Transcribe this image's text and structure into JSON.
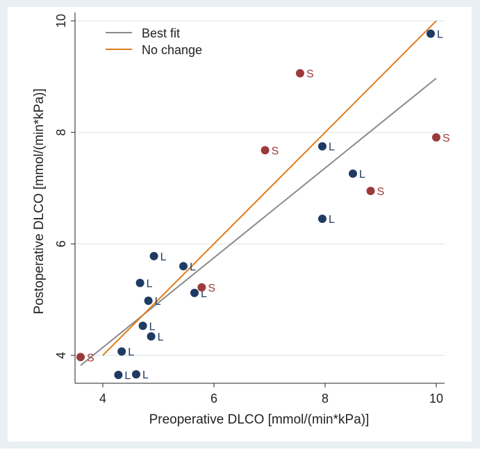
{
  "chart_data": {
    "type": "scatter",
    "title": "",
    "xlabel": "Preoperative DLCO [mmol/(min*kPa)]",
    "ylabel": "Postoperative DLCO [mmol/(min*kPa)]",
    "xlim": [
      3.5,
      10.15
    ],
    "ylim": [
      3.5,
      10.15
    ],
    "xticks": [
      4,
      6,
      8,
      10
    ],
    "yticks": [
      4,
      6,
      8,
      10
    ],
    "grid": true,
    "legend_position": "top-left",
    "legend": [
      {
        "label": "Best fit",
        "color": "#8a8a8a"
      },
      {
        "label": "No change",
        "color": "#e07b1a"
      }
    ],
    "lines": [
      {
        "name": "Best fit",
        "x": [
          3.6,
          10.0
        ],
        "y": [
          3.82,
          8.97
        ],
        "color": "#8a8a8a"
      },
      {
        "name": "No change",
        "x": [
          4.0,
          10.0
        ],
        "y": [
          4.0,
          10.0
        ],
        "color": "#e07b1a"
      }
    ],
    "series": [
      {
        "label": "L",
        "color": "#1f3b63",
        "points": [
          {
            "x": 9.9,
            "y": 9.77
          },
          {
            "x": 7.95,
            "y": 7.75
          },
          {
            "x": 8.5,
            "y": 7.26
          },
          {
            "x": 7.95,
            "y": 6.45
          },
          {
            "x": 4.92,
            "y": 5.78
          },
          {
            "x": 5.45,
            "y": 5.6
          },
          {
            "x": 4.67,
            "y": 5.3
          },
          {
            "x": 5.65,
            "y": 5.12
          },
          {
            "x": 4.82,
            "y": 4.98
          },
          {
            "x": 4.72,
            "y": 4.53
          },
          {
            "x": 4.87,
            "y": 4.34
          },
          {
            "x": 4.34,
            "y": 4.07
          },
          {
            "x": 4.28,
            "y": 3.65
          },
          {
            "x": 4.6,
            "y": 3.66
          }
        ]
      },
      {
        "label": "S",
        "color": "#9b3a3a",
        "points": [
          {
            "x": 7.55,
            "y": 9.06
          },
          {
            "x": 10.0,
            "y": 7.91
          },
          {
            "x": 6.92,
            "y": 7.68
          },
          {
            "x": 8.82,
            "y": 6.95
          },
          {
            "x": 5.78,
            "y": 5.22
          },
          {
            "x": 3.6,
            "y": 3.97
          }
        ]
      }
    ]
  }
}
